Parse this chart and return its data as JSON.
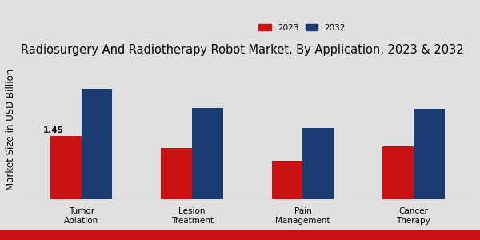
{
  "title": "Radiosurgery And Radiotherapy Robot Market, By Application, 2023 & 2032",
  "ylabel": "Market Size in USD Billion",
  "categories": [
    "Tumor\nAblation",
    "Lesion\nTreatment",
    "Pain\nManagement",
    "Cancer\nTherapy"
  ],
  "values_2023": [
    1.45,
    1.18,
    0.88,
    1.22
  ],
  "values_2032": [
    2.55,
    2.1,
    1.65,
    2.08
  ],
  "color_2023": "#cc1111",
  "color_2032": "#1a3a72",
  "background_color": "#e0e0e0",
  "annotation_value": "1.45",
  "annotation_category_index": 0,
  "legend_labels": [
    "2023",
    "2032"
  ],
  "bar_width": 0.28,
  "title_fontsize": 10.5,
  "axis_label_fontsize": 8.5,
  "tick_fontsize": 7.5,
  "ylim": [
    0,
    3.2
  ],
  "bottom_bar_color": "#cc1111"
}
